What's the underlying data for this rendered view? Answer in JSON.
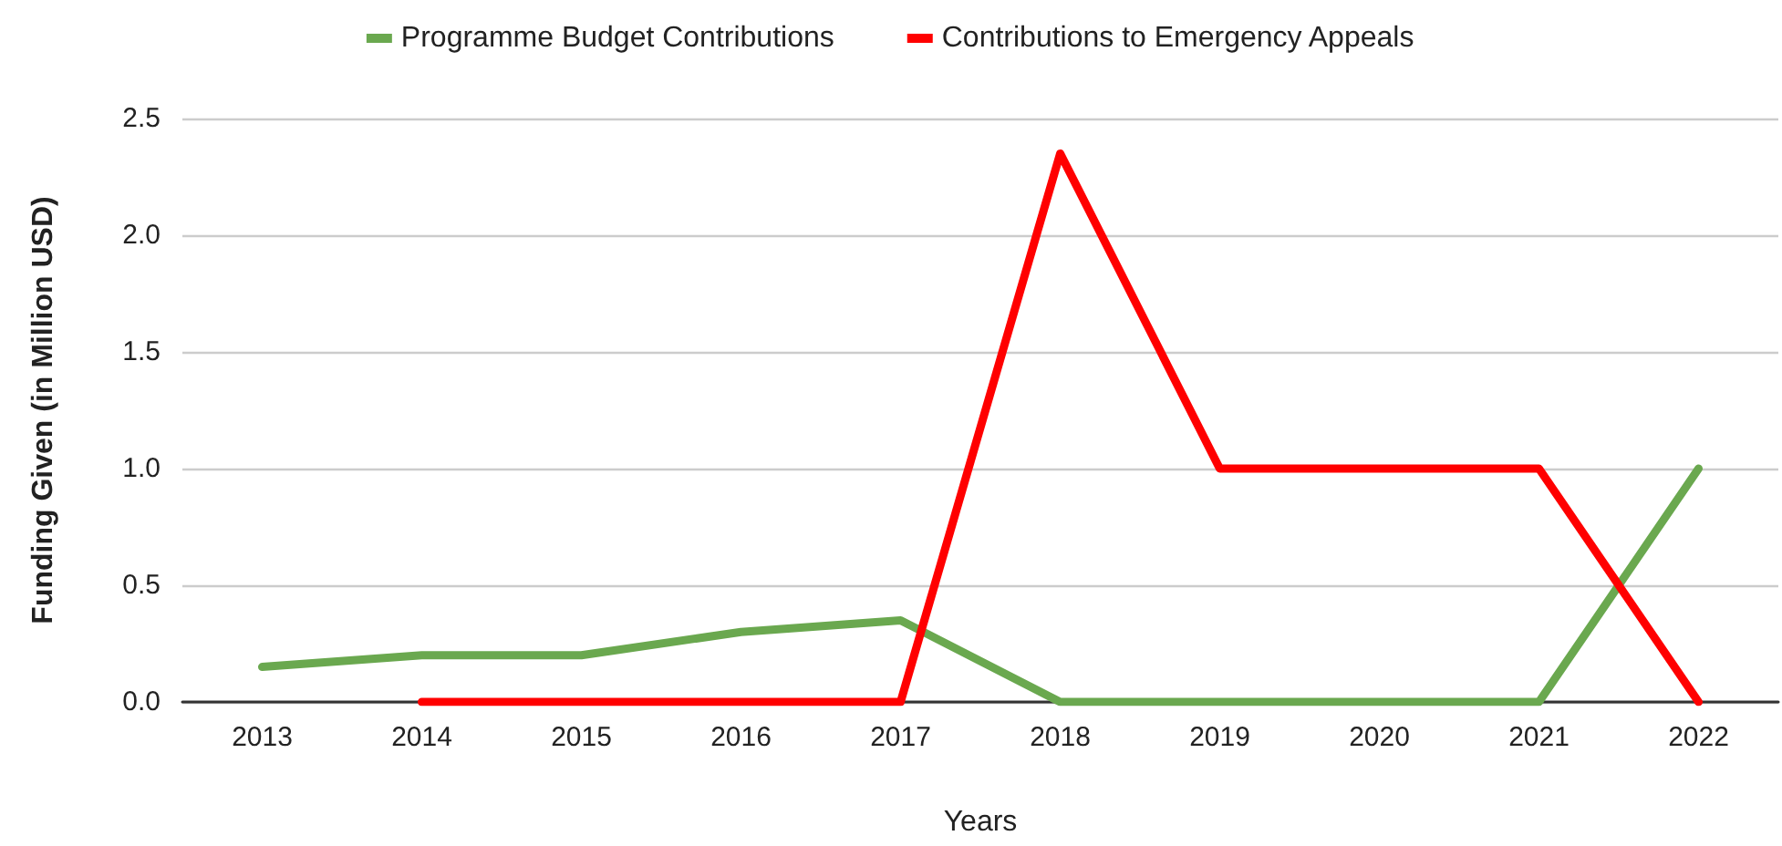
{
  "chart_data": {
    "type": "line",
    "xlabel": "Years",
    "ylabel": "Funding Given (in Million USD)",
    "categories": [
      "2013",
      "2014",
      "2015",
      "2016",
      "2017",
      "2018",
      "2019",
      "2020",
      "2021",
      "2022"
    ],
    "series": [
      {
        "name": "Programme Budget Contributions",
        "color": "#6aa84f",
        "values": [
          0.15,
          0.2,
          0.2,
          0.3,
          0.35,
          0,
          0,
          0,
          0,
          1.0
        ]
      },
      {
        "name": "Contributions to Emergency Appeals",
        "color": "#ff0000",
        "values": [
          null,
          0,
          0,
          0,
          0,
          2.35,
          1,
          1,
          1,
          0
        ]
      }
    ],
    "ylim": [
      0,
      2.5
    ],
    "yticks": [
      {
        "value": 0,
        "label": "0.0"
      },
      {
        "value": 0.5,
        "label": "0.5"
      },
      {
        "value": 1,
        "label": "1.0"
      },
      {
        "value": 1.5,
        "label": "1.5"
      },
      {
        "value": 2,
        "label": "2.0"
      },
      {
        "value": 2.5,
        "label": "2.5"
      }
    ],
    "grid": "y",
    "legend": "top",
    "marker": "none",
    "line_style": "solid"
  }
}
